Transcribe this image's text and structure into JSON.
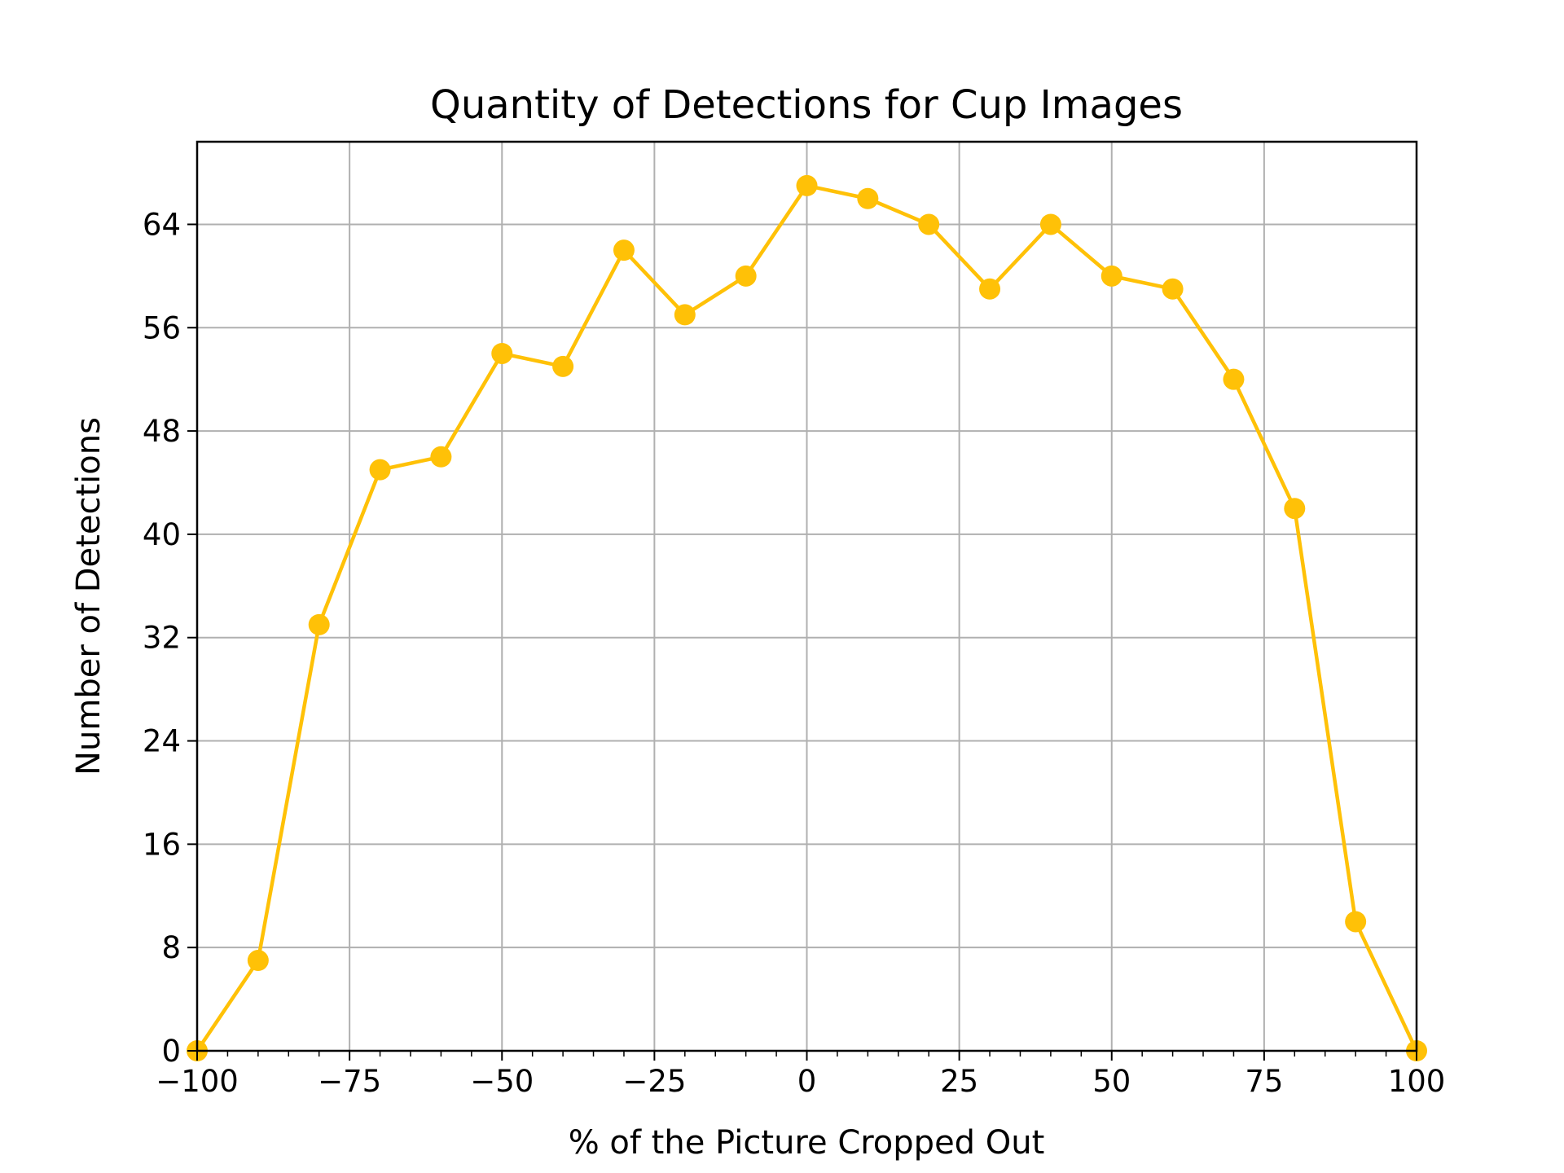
{
  "chart_data": {
    "type": "line",
    "title": "Quantity of Detections for Cup Images",
    "xlabel": "% of the Picture Cropped Out",
    "ylabel": "Number of Detections",
    "xlim": [
      -100,
      100
    ],
    "ylim": [
      0,
      70.4
    ],
    "xticks": [
      -100,
      -75,
      -50,
      -25,
      0,
      25,
      50,
      75,
      100
    ],
    "xtick_labels": [
      "−100",
      "−75",
      "−50",
      "−25",
      "0",
      "25",
      "50",
      "75",
      "100"
    ],
    "yticks": [
      0,
      8,
      16,
      24,
      32,
      40,
      48,
      56,
      64
    ],
    "ytick_labels": [
      "0",
      "8",
      "16",
      "24",
      "32",
      "40",
      "48",
      "56",
      "64"
    ],
    "grid": true,
    "series": [
      {
        "color": "#FFC107",
        "x": [
          -100,
          -90,
          -80,
          -70,
          -60,
          -50,
          -40,
          -30,
          -20,
          -10,
          0,
          10,
          20,
          30,
          40,
          50,
          60,
          70,
          80,
          90,
          100
        ],
        "y": [
          0,
          7,
          33,
          45,
          46,
          54,
          53,
          62,
          57,
          60,
          67,
          66,
          64,
          59,
          64,
          60,
          59,
          52,
          42,
          10,
          0
        ]
      }
    ]
  }
}
